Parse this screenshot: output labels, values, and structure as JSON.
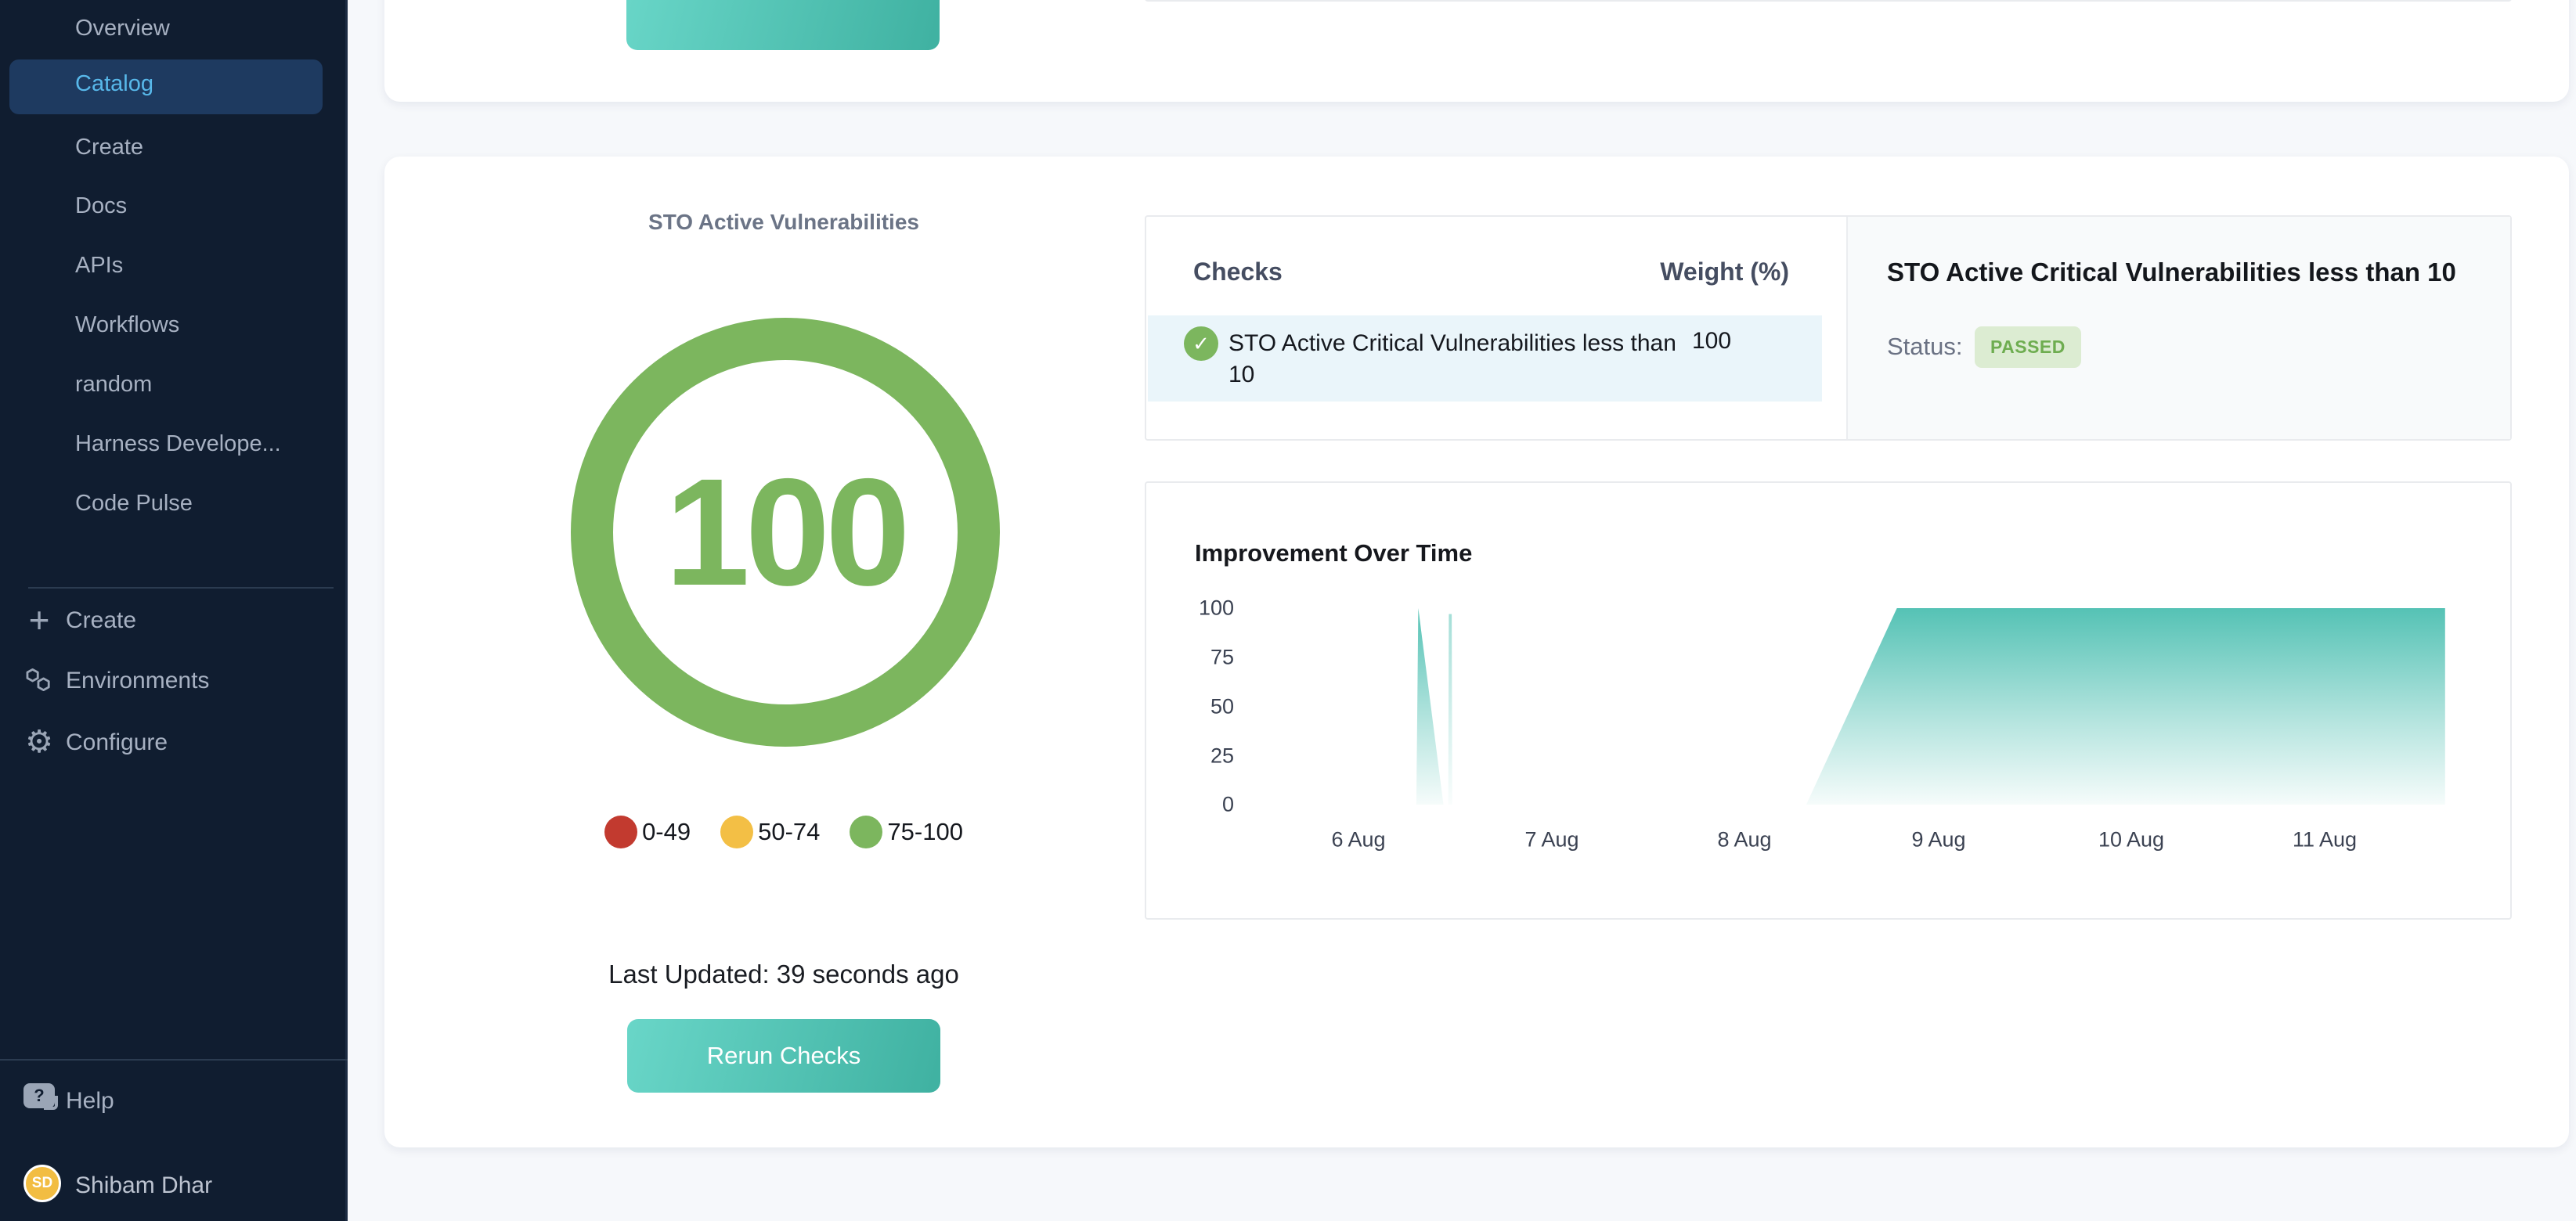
{
  "sidebar": {
    "nav_items": [
      {
        "label": "Overview",
        "active": false
      },
      {
        "label": "Catalog",
        "active": true
      },
      {
        "label": "Create",
        "active": false
      },
      {
        "label": "Docs",
        "active": false
      },
      {
        "label": "APIs",
        "active": false
      },
      {
        "label": "Workflows",
        "active": false
      },
      {
        "label": "random",
        "active": false
      },
      {
        "label": "Harness Develope...",
        "active": false
      },
      {
        "label": "Code Pulse",
        "active": false
      }
    ],
    "actions": [
      {
        "label": "Create",
        "icon": "plus-icon"
      },
      {
        "label": "Environments",
        "icon": "hexagons-icon"
      },
      {
        "label": "Configure",
        "icon": "gear-icon"
      }
    ],
    "help_label": "Help",
    "user": {
      "initials": "SD",
      "name": "Shibam Dhar",
      "avatar_color": "#f2bd42"
    }
  },
  "scorecard": {
    "title": "STO Active Vulnerabilities",
    "score": "100",
    "score_color": "#7cb65e",
    "legend": [
      {
        "label": "0-49",
        "color": "#c23a2f"
      },
      {
        "label": "50-74",
        "color": "#f3bf45"
      },
      {
        "label": "75-100",
        "color": "#7cb65e"
      }
    ],
    "last_updated": "Last Updated: 39 seconds ago",
    "rerun_label": "Rerun Checks"
  },
  "checks_panel": {
    "header": "Checks",
    "weight_header": "Weight (%)",
    "rows": [
      {
        "name": "STO Active Critical Vulnerabilities less than 10",
        "weight": "100",
        "passed": true
      }
    ]
  },
  "detail_panel": {
    "title": "STO Active Critical Vulnerabilities less than 10",
    "status_label": "Status:",
    "status_value": "PASSED",
    "badge_bg": "#dcecd2",
    "badge_color": "#6ead50"
  },
  "chart_data": {
    "type": "area",
    "title": "Improvement Over Time",
    "xlabel": "",
    "ylabel": "",
    "x_unit": "date (August)",
    "x_ticks": [
      "6 Aug",
      "7 Aug",
      "8 Aug",
      "9 Aug",
      "10 Aug",
      "11 Aug"
    ],
    "y_ticks": [
      "100",
      "75",
      "50",
      "25",
      "0"
    ],
    "ylim": [
      0,
      100
    ],
    "xlim_days": [
      5.5,
      11.75
    ],
    "grid": false,
    "legend_position": "none",
    "area_color": "#4cbfb1",
    "series": [
      {
        "name": "score-spike-6aug",
        "opacity": 1,
        "points": [
          [
            6.3,
            0
          ],
          [
            6.31,
            100
          ],
          [
            6.44,
            0
          ]
        ]
      },
      {
        "name": "score-spike-6aug-second",
        "opacity": 0.55,
        "points": [
          [
            6.465,
            0
          ],
          [
            6.468,
            97
          ],
          [
            6.483,
            97
          ],
          [
            6.486,
            0
          ]
        ]
      },
      {
        "name": "score-sustained",
        "opacity": 1,
        "points": [
          [
            8.32,
            0
          ],
          [
            8.79,
            100
          ],
          [
            11.63,
            100
          ],
          [
            11.63,
            0
          ]
        ]
      }
    ]
  }
}
